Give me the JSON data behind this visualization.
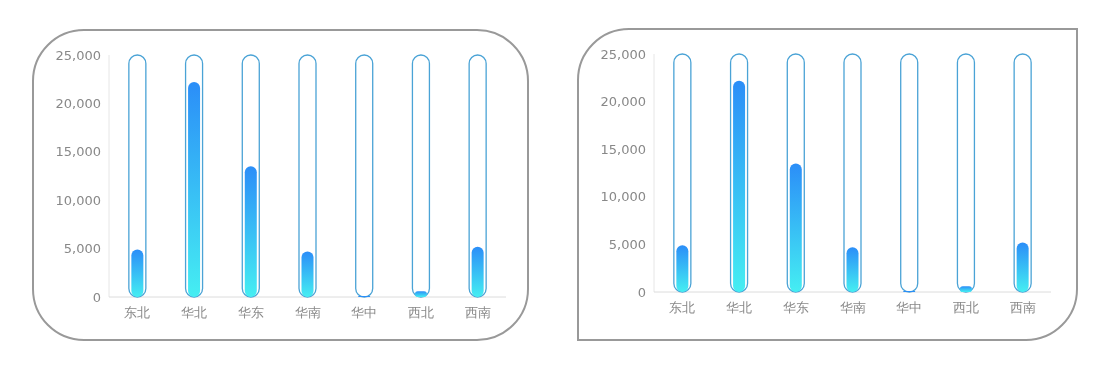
{
  "chart_data": [
    {
      "type": "bar",
      "categories": [
        "东北",
        "华北",
        "华东",
        "华南",
        "华中",
        "西北",
        "西南"
      ],
      "ylim": [
        0,
        25000
      ],
      "yticks": [
        0,
        {
          "value": 5000,
          "label": "5,000"
        },
        {
          "value": 10000,
          "label": "10,000"
        },
        {
          "value": 15000,
          "label": "15,000"
        },
        {
          "value": 20000,
          "label": "20,000"
        },
        {
          "value": 25000,
          "label": "25,000"
        }
      ],
      "grid": false,
      "series": [
        {
          "color": "#4aa3d6",
          "values": [
            25000,
            25000,
            25000,
            25000,
            25000,
            25000,
            25000
          ]
        },
        {
          "color": "#2b8ef8",
          "values": [
            4900,
            22200,
            13500,
            4700,
            100,
            600,
            5200
          ]
        }
      ]
    },
    {
      "type": "bar",
      "categories": [
        "东北",
        "华北",
        "华东",
        "华南",
        "华中",
        "西北",
        "西南"
      ],
      "ylim": [
        0,
        25000
      ],
      "yticks": [
        0,
        {
          "value": 5000,
          "label": "5,000"
        },
        {
          "value": 10000,
          "label": "10,000"
        },
        {
          "value": 15000,
          "label": "15,000"
        },
        {
          "value": 20000,
          "label": "20,000"
        },
        {
          "value": 25000,
          "label": "25,000"
        }
      ],
      "grid": false,
      "series": [
        {
          "color": "#4aa3d6",
          "values": [
            25000,
            25000,
            25000,
            25000,
            25000,
            25000,
            25000
          ]
        },
        {
          "color": "#2b8ef8",
          "values": [
            4900,
            22200,
            13500,
            4700,
            100,
            600,
            5200
          ]
        }
      ]
    }
  ]
}
